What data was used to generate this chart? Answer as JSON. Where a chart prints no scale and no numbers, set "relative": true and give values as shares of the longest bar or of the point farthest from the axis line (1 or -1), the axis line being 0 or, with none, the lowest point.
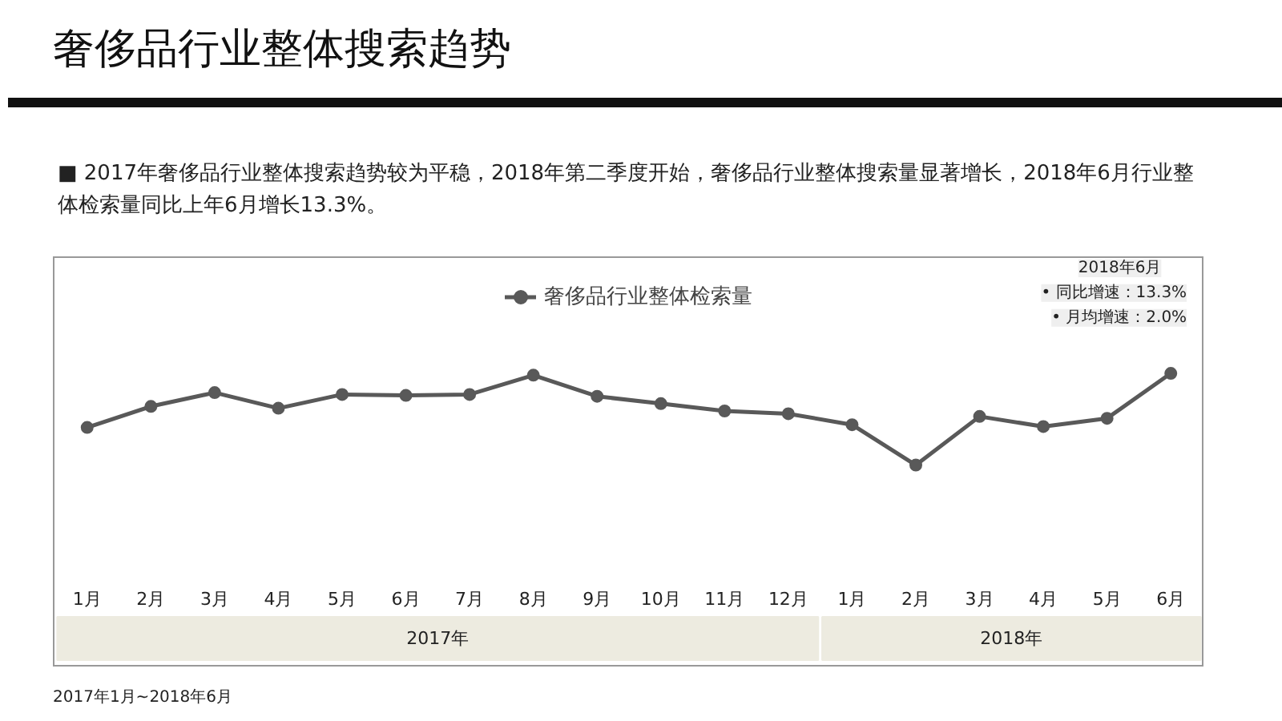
{
  "chart_data": {
    "type": "line",
    "title": "奢侈品行业整体搜索趋势",
    "subtitle": "■ 2017年奢侈品行业整体搜索趋势较为平稳，2018年第二季度开始，奢侈品行业整体搜索量显著增长，2018年6月行业整体检索量同比上年6月增长13.3%。",
    "categories": [
      "1月",
      "2月",
      "3月",
      "4月",
      "5月",
      "6月",
      "7月",
      "8月",
      "9月",
      "10月",
      "11月",
      "12月",
      "1月",
      "2月",
      "3月",
      "4月",
      "5月",
      "6月"
    ],
    "series": [
      {
        "name": "奢侈品行业整体检索量",
        "color": "#595959",
        "values": [
          0.41,
          0.64,
          0.79,
          0.62,
          0.77,
          0.76,
          0.77,
          0.98,
          0.75,
          0.67,
          0.59,
          0.56,
          0.44,
          0,
          0.53,
          0.42,
          0.51,
          1
        ]
      }
    ],
    "relative": true,
    "legend": "top",
    "grid": false,
    "marker": "circle",
    "line_style": "solid",
    "annotations": [
      "2017年",
      "2018年",
      "2018年6月",
      "• 同比增速：13.3%",
      "• 月均增速：2.0%",
      "2017年1月~2018年6月"
    ]
  }
}
